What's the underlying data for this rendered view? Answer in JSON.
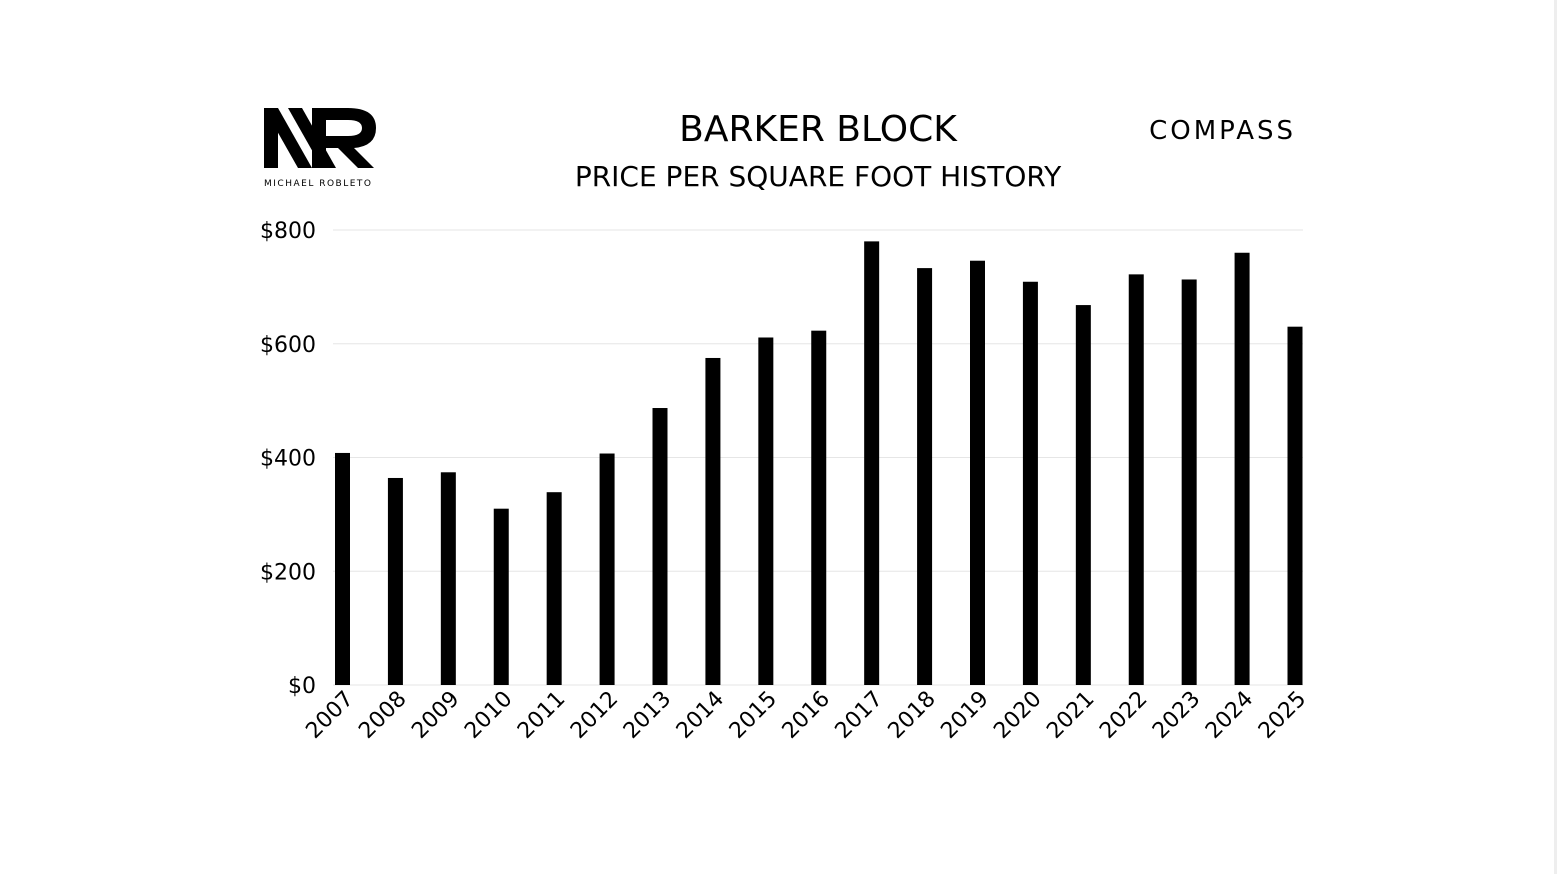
{
  "logo": {
    "monogram_icon": "mr-monogram-icon",
    "name": "MICHAEL ROBLETO"
  },
  "brand": {
    "compass": "COMPASS"
  },
  "colors": {
    "bar": "#000000",
    "grid": "#e6e6e6",
    "background": "#ffffff"
  },
  "chart_data": {
    "type": "bar",
    "title": "BARKER BLOCK",
    "subtitle": "PRICE PER SQUARE FOOT HISTORY",
    "categories": [
      "2007",
      "2008",
      "2009",
      "2010",
      "2011",
      "2012",
      "2013",
      "2014",
      "2015",
      "2016",
      "2017",
      "2018",
      "2019",
      "2020",
      "2021",
      "2022",
      "2023",
      "2024",
      "2025"
    ],
    "values": [
      408,
      364,
      374,
      310,
      339,
      407,
      487,
      575,
      611,
      623,
      780,
      733,
      746,
      709,
      668,
      722,
      713,
      760,
      630
    ],
    "ylim": [
      0,
      800
    ],
    "yticks": [
      0,
      200,
      400,
      600,
      800
    ],
    "ytick_labels": [
      "$0",
      "$200",
      "$400",
      "$600",
      "$800"
    ],
    "xlabel": "",
    "ylabel": "",
    "grid": true,
    "legend": "none"
  }
}
